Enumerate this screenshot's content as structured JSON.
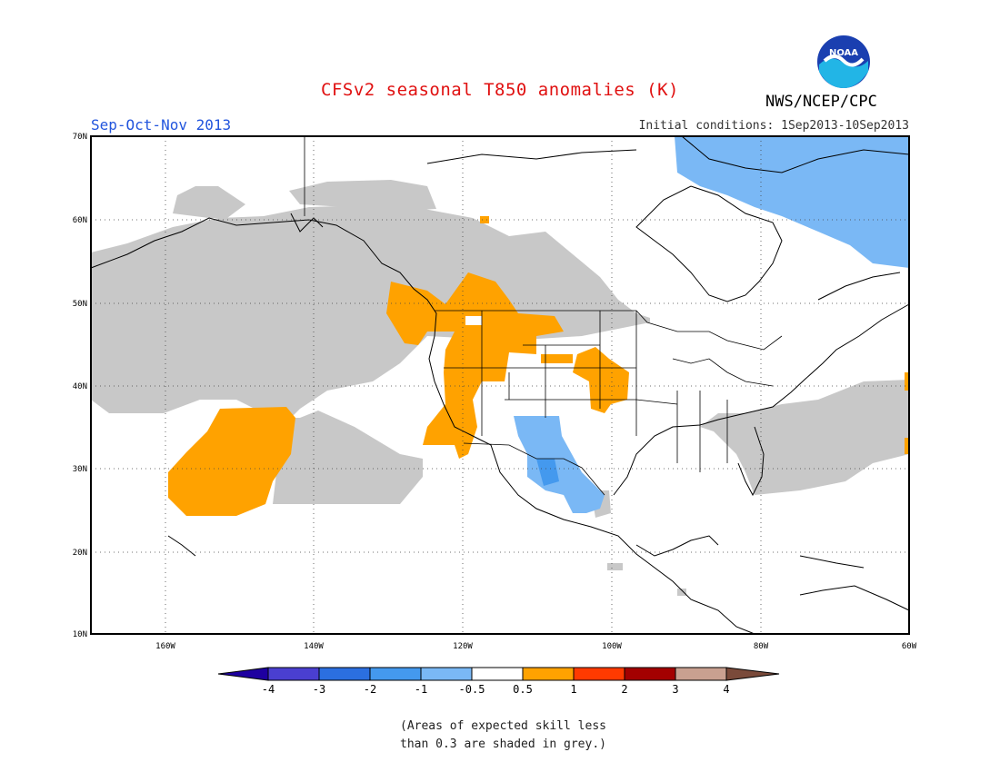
{
  "title": "CFSv2 seasonal T850 anomalies (K)",
  "agency": "NWS/NCEP/CPC",
  "season": "Sep-Oct-Nov 2013",
  "initial_conditions": "Initial conditions: 1Sep2013-10Sep2013",
  "logo_text": "NOAA",
  "note_line1": "(Areas of expected skill less",
  "note_line2": "than 0.3 are shaded in grey.)",
  "lat_labels": [
    "70N",
    "60N",
    "50N",
    "40N",
    "30N",
    "20N",
    "10N"
  ],
  "lon_labels": [
    "160W",
    "140W",
    "120W",
    "100W",
    "80W",
    "60W"
  ],
  "legend": {
    "labels": [
      "-4",
      "-3",
      "-2",
      "-1",
      "-0.5",
      "0.5",
      "1",
      "2",
      "3",
      "4"
    ],
    "colors": [
      "#1e00a0",
      "#4a3fd0",
      "#2b6fe0",
      "#4499ee",
      "#7ab8f5",
      "#ffffff",
      "#ffa200",
      "#ff3a00",
      "#a30000",
      "#c9a090",
      "#7a4a3a"
    ]
  },
  "colors": {
    "grey_low_skill": "#c8c8c8",
    "warm_anomaly": "#ffa200",
    "cool_anomaly": "#7ab8f5",
    "cool_strong": "#4499ee"
  }
}
